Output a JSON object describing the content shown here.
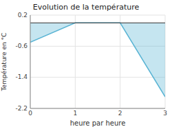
{
  "chart_data": {
    "type": "area",
    "title": "Evolution de la température",
    "xlabel": "heure par heure",
    "ylabel": "Température en °C",
    "x": [
      0,
      1,
      2,
      3
    ],
    "values": [
      -0.5,
      0.0,
      0.0,
      -1.9
    ],
    "baseline": 0.0,
    "color": "#5ab4d4",
    "xlim": [
      0,
      3
    ],
    "ylim": [
      -2.2,
      0.2
    ],
    "xticks": [
      0,
      1,
      2,
      3
    ],
    "yticks": [
      0.2,
      -0.6,
      -1.4,
      -2.2
    ],
    "grid": true
  }
}
